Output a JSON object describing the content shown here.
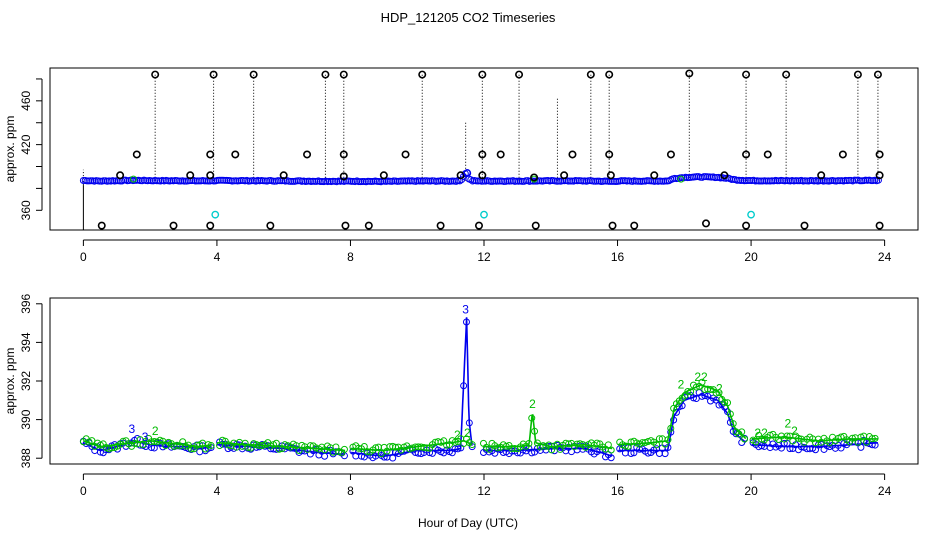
{
  "figure": {
    "title": "HDP_121205  CO2 Timeseries",
    "xlabel": "Hour of Day (UTC)"
  },
  "colors": {
    "raw_flag": "#000000",
    "series_blue": "#0000ee",
    "series_green": "#00bb00",
    "cyan": "#00cccc",
    "axis": "#000000"
  },
  "chart_data": [
    {
      "type": "scatter",
      "title": "",
      "xlabel": "",
      "ylabel": "approx. ppm",
      "xlim": [
        -1,
        25
      ],
      "ylim": [
        342,
        490
      ],
      "xticks": [
        0,
        4,
        8,
        12,
        16,
        20,
        24
      ],
      "xtick_labels": [
        "0",
        "4",
        "8",
        "12",
        "16",
        "20",
        "24"
      ],
      "yticks": [
        360,
        380,
        400,
        420,
        440,
        460,
        480
      ],
      "ytick_labels": [
        "360",
        "",
        "",
        "420",
        "",
        "460",
        ""
      ],
      "baseline_level": 387,
      "spike_lines_top_ppm": [
        [
          2.15,
          485
        ],
        [
          3.9,
          486
        ],
        [
          5.1,
          484
        ],
        [
          7.25,
          484
        ],
        [
          7.8,
          484
        ],
        [
          10.15,
          484
        ],
        [
          11.95,
          484
        ],
        [
          13.05,
          484
        ],
        [
          15.2,
          484
        ],
        [
          15.75,
          484
        ],
        [
          18.15,
          486
        ],
        [
          19.85,
          484
        ],
        [
          21.05,
          484
        ],
        [
          23.2,
          484
        ],
        [
          23.8,
          484
        ],
        [
          11.45,
          440
        ],
        [
          14.2,
          462
        ]
      ],
      "high_outliers_ppm": [
        [
          2.15,
          484
        ],
        [
          3.9,
          484
        ],
        [
          5.1,
          484
        ],
        [
          7.25,
          484
        ],
        [
          7.8,
          484
        ],
        [
          10.15,
          484
        ],
        [
          11.95,
          484
        ],
        [
          13.05,
          484
        ],
        [
          15.2,
          484
        ],
        [
          15.75,
          484
        ],
        [
          18.15,
          485
        ],
        [
          19.85,
          484
        ],
        [
          21.05,
          484
        ],
        [
          23.2,
          484
        ],
        [
          23.8,
          484
        ]
      ],
      "mid_outliers_ppm": [
        [
          1.6,
          411
        ],
        [
          3.8,
          411
        ],
        [
          4.55,
          411
        ],
        [
          6.7,
          411
        ],
        [
          7.8,
          411
        ],
        [
          9.65,
          411
        ],
        [
          11.95,
          411
        ],
        [
          12.5,
          411
        ],
        [
          14.65,
          411
        ],
        [
          15.75,
          411
        ],
        [
          17.6,
          411
        ],
        [
          19.85,
          411
        ],
        [
          20.5,
          411
        ],
        [
          22.75,
          411
        ],
        [
          23.85,
          411
        ]
      ],
      "low_markers_ppm": [
        [
          1.1,
          392
        ],
        [
          3.2,
          392
        ],
        [
          3.8,
          392
        ],
        [
          6.0,
          392
        ],
        [
          7.8,
          391
        ],
        [
          9.0,
          392
        ],
        [
          11.3,
          392
        ],
        [
          11.95,
          392
        ],
        [
          13.5,
          390
        ],
        [
          14.4,
          392
        ],
        [
          15.8,
          392
        ],
        [
          17.1,
          392
        ],
        [
          19.2,
          392
        ],
        [
          22.1,
          392
        ],
        [
          23.85,
          392
        ]
      ],
      "bottom_outliers_ppm": [
        [
          0.55,
          346
        ],
        [
          2.7,
          346
        ],
        [
          3.8,
          346
        ],
        [
          5.6,
          346
        ],
        [
          7.85,
          346
        ],
        [
          8.55,
          346
        ],
        [
          10.7,
          346
        ],
        [
          11.85,
          346
        ],
        [
          13.55,
          346
        ],
        [
          15.85,
          346
        ],
        [
          16.5,
          346
        ],
        [
          18.65,
          348
        ],
        [
          19.85,
          346
        ],
        [
          21.6,
          346
        ],
        [
          23.85,
          346
        ]
      ],
      "cyan_markers_ppm": [
        [
          3.95,
          356
        ],
        [
          12.0,
          356
        ],
        [
          20.0,
          356
        ],
        [
          11.5,
          394
        ]
      ]
    },
    {
      "type": "line",
      "title": "",
      "xlabel": "Hour of Day (UTC)",
      "ylabel": "approx. ppm",
      "xlim": [
        -1,
        25
      ],
      "ylim": [
        387.7,
        396.3
      ],
      "xticks": [
        0,
        4,
        8,
        12,
        16,
        20,
        24
      ],
      "xtick_labels": [
        "0",
        "4",
        "8",
        "12",
        "16",
        "20",
        "24"
      ],
      "yticks": [
        388,
        390,
        392,
        394,
        396
      ],
      "ytick_labels": [
        "388",
        "390",
        "392",
        "394",
        "396"
      ],
      "series": [
        {
          "name": "3",
          "color": "#0000ee",
          "gaps": [
            [
              3.85,
              4.0
            ],
            [
              7.85,
              8.0
            ],
            [
              11.65,
              11.98
            ],
            [
              15.85,
              16.0
            ],
            [
              19.85,
              20.0
            ]
          ],
          "points": [
            [
              0.0,
              388.8
            ],
            [
              0.5,
              388.4
            ],
            [
              1.0,
              388.6
            ],
            [
              1.5,
              388.9
            ],
            [
              2.0,
              388.7
            ],
            [
              2.5,
              388.6
            ],
            [
              3.0,
              388.6
            ],
            [
              3.5,
              388.5
            ],
            [
              3.85,
              388.6
            ],
            [
              4.0,
              388.7
            ],
            [
              5.0,
              388.6
            ],
            [
              6.0,
              388.5
            ],
            [
              7.0,
              388.3
            ],
            [
              7.85,
              388.2
            ],
            [
              8.0,
              388.3
            ],
            [
              9.0,
              388.1
            ],
            [
              10.0,
              388.4
            ],
            [
              11.0,
              388.4
            ],
            [
              11.3,
              388.5
            ],
            [
              11.42,
              393.0
            ],
            [
              11.48,
              395.3
            ],
            [
              11.55,
              390.0
            ],
            [
              11.65,
              388.5
            ],
            [
              12.0,
              388.4
            ],
            [
              13.0,
              388.4
            ],
            [
              14.0,
              388.5
            ],
            [
              15.0,
              388.5
            ],
            [
              15.5,
              388.3
            ],
            [
              15.85,
              388.1
            ],
            [
              16.0,
              388.4
            ],
            [
              17.0,
              388.4
            ],
            [
              17.5,
              388.4
            ],
            [
              17.7,
              390.2
            ],
            [
              18.0,
              391.0
            ],
            [
              18.5,
              391.3
            ],
            [
              19.0,
              391.0
            ],
            [
              19.3,
              390.3
            ],
            [
              19.5,
              389.3
            ],
            [
              19.85,
              388.8
            ],
            [
              20.0,
              388.7
            ],
            [
              21.0,
              388.6
            ],
            [
              22.0,
              388.6
            ],
            [
              23.0,
              388.7
            ],
            [
              23.8,
              388.8
            ]
          ]
        },
        {
          "name": "2",
          "color": "#00bb00",
          "gaps": [
            [
              3.85,
              4.0
            ],
            [
              7.85,
              8.0
            ],
            [
              11.65,
              11.98
            ],
            [
              15.85,
              16.0
            ],
            [
              19.85,
              20.0
            ]
          ],
          "points": [
            [
              0.0,
              388.9
            ],
            [
              0.5,
              388.6
            ],
            [
              1.0,
              388.7
            ],
            [
              1.5,
              388.8
            ],
            [
              2.0,
              388.9
            ],
            [
              2.5,
              388.8
            ],
            [
              3.0,
              388.7
            ],
            [
              3.5,
              388.6
            ],
            [
              3.85,
              388.7
            ],
            [
              4.0,
              388.8
            ],
            [
              5.0,
              388.7
            ],
            [
              6.0,
              388.6
            ],
            [
              7.0,
              388.5
            ],
            [
              7.85,
              388.4
            ],
            [
              8.0,
              388.5
            ],
            [
              9.0,
              388.4
            ],
            [
              10.0,
              388.6
            ],
            [
              11.0,
              388.8
            ],
            [
              11.4,
              388.9
            ],
            [
              11.65,
              388.7
            ],
            [
              12.0,
              388.6
            ],
            [
              13.0,
              388.6
            ],
            [
              13.35,
              388.7
            ],
            [
              13.45,
              390.4
            ],
            [
              13.55,
              388.8
            ],
            [
              14.0,
              388.6
            ],
            [
              15.0,
              388.7
            ],
            [
              15.85,
              388.5
            ],
            [
              16.0,
              388.7
            ],
            [
              17.0,
              388.8
            ],
            [
              17.5,
              388.9
            ],
            [
              17.7,
              390.6
            ],
            [
              18.0,
              391.4
            ],
            [
              18.5,
              391.8
            ],
            [
              19.0,
              391.5
            ],
            [
              19.3,
              390.7
            ],
            [
              19.5,
              389.6
            ],
            [
              19.85,
              389.0
            ],
            [
              20.0,
              389.0
            ],
            [
              21.0,
              389.1
            ],
            [
              22.0,
              388.9
            ],
            [
              23.0,
              389.0
            ],
            [
              23.8,
              389.0
            ]
          ]
        }
      ],
      "annotations": [
        {
          "text": "3",
          "x": 1.45,
          "y": 389.3,
          "color": "#0000ee"
        },
        {
          "text": "3",
          "x": 1.85,
          "y": 388.9,
          "color": "#0000ee"
        },
        {
          "text": "2",
          "x": 2.15,
          "y": 389.2,
          "color": "#00bb00"
        },
        {
          "text": "3",
          "x": 11.45,
          "y": 395.5,
          "color": "#0000ee"
        },
        {
          "text": "2",
          "x": 11.2,
          "y": 389.0,
          "color": "#00bb00"
        },
        {
          "text": "2",
          "x": 11.5,
          "y": 389.1,
          "color": "#00bb00"
        },
        {
          "text": "2",
          "x": 13.45,
          "y": 390.6,
          "color": "#00bb00"
        },
        {
          "text": "2",
          "x": 17.9,
          "y": 391.6,
          "color": "#00bb00"
        },
        {
          "text": "22",
          "x": 18.5,
          "y": 392.0,
          "color": "#00bb00"
        },
        {
          "text": "2",
          "x": 19.05,
          "y": 391.4,
          "color": "#00bb00"
        },
        {
          "text": "22",
          "x": 20.3,
          "y": 389.1,
          "color": "#00bb00"
        },
        {
          "text": "2",
          "x": 21.1,
          "y": 389.6,
          "color": "#00bb00"
        },
        {
          "text": "2",
          "x": 21.3,
          "y": 389.2,
          "color": "#00bb00"
        }
      ]
    }
  ]
}
